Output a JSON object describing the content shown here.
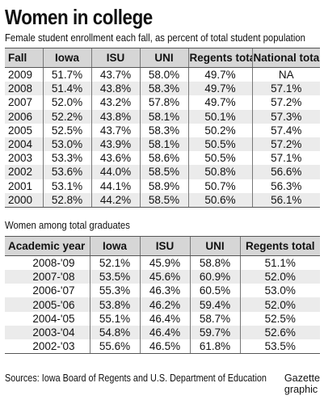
{
  "title": "Women in college",
  "subtitle": "Female student enrollment each fall, as percent of total student population",
  "section2_label": "Women among total graduates",
  "source": "Sources: Iowa Board of Regents and U.S. Department of Education",
  "credit_line1": "Gazette",
  "credit_line2": "graphic",
  "chart_data": [
    {
      "type": "table",
      "title": "Female student enrollment each fall, as percent of total student population",
      "columns": [
        "Fall",
        "Iowa",
        "ISU",
        "UNI",
        "Regents total",
        "National total"
      ],
      "rows": [
        [
          "2009",
          "51.7%",
          "43.7%",
          "58.0%",
          "49.7%",
          "NA"
        ],
        [
          "2008",
          "51.4%",
          "43.8%",
          "58.3%",
          "49.7%",
          "57.1%"
        ],
        [
          "2007",
          "52.0%",
          "43.2%",
          "57.8%",
          "49.7%",
          "57.2%"
        ],
        [
          "2006",
          "52.2%",
          "43.8%",
          "58.1%",
          "50.1%",
          "57.3%"
        ],
        [
          "2005",
          "52.5%",
          "43.7%",
          "58.3%",
          "50.2%",
          "57.4%"
        ],
        [
          "2004",
          "53.0%",
          "43.9%",
          "58.1%",
          "50.5%",
          "57.2%"
        ],
        [
          "2003",
          "53.3%",
          "43.6%",
          "58.6%",
          "50.5%",
          "57.1%"
        ],
        [
          "2002",
          "53.6%",
          "44.0%",
          "58.5%",
          "50.8%",
          "56.6%"
        ],
        [
          "2001",
          "53.1%",
          "44.1%",
          "58.9%",
          "50.7%",
          "56.3%"
        ],
        [
          "2000",
          "52.8%",
          "44.2%",
          "58.5%",
          "50.6%",
          "56.1%"
        ]
      ]
    },
    {
      "type": "table",
      "title": "Women among total graduates",
      "columns": [
        "Academic year",
        "Iowa",
        "ISU",
        "UNI",
        "Regents total"
      ],
      "rows": [
        [
          "2008-'09",
          "52.1%",
          "45.9%",
          "58.8%",
          "51.1%"
        ],
        [
          "2007-'08",
          "53.5%",
          "45.6%",
          "60.9%",
          "52.0%"
        ],
        [
          "2006-'07",
          "55.3%",
          "46.3%",
          "60.5%",
          "53.0%"
        ],
        [
          "2005-'06",
          "53.8%",
          "46.2%",
          "59.4%",
          "52.0%"
        ],
        [
          "2004-'05",
          "55.1%",
          "46.4%",
          "58.7%",
          "52.5%"
        ],
        [
          "2003-'04",
          "54.8%",
          "46.4%",
          "59.7%",
          "52.6%"
        ],
        [
          "2002-'03",
          "55.6%",
          "46.5%",
          "61.8%",
          "53.5%"
        ]
      ]
    }
  ]
}
